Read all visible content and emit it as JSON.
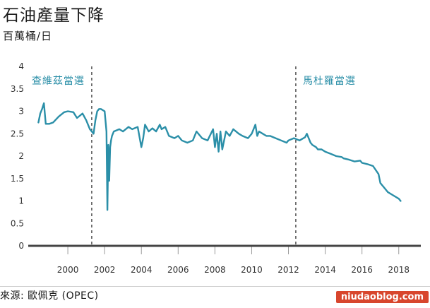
{
  "header": {
    "title": "石油產量下降",
    "subtitle": "百萬桶/日"
  },
  "footer": {
    "source": "來源: 歐佩克 (OPEC)",
    "watermark": "niudaoblog.com"
  },
  "colors": {
    "line": "#2b8fa8",
    "annotation": "#2b8fa8",
    "axis": "#444444",
    "dashed": "#333333"
  },
  "chart_data": {
    "type": "line",
    "title": "石油產量下降",
    "ylabel": "百萬桶/日",
    "xlabel": "",
    "xlim": [
      1998.0,
      2019.2
    ],
    "ylim": [
      0,
      4
    ],
    "yticks": [
      "0",
      "0.5",
      "1",
      "1.5",
      "2",
      "2.5",
      "3",
      "3.5",
      "4"
    ],
    "xticks": [
      "2000",
      "2002",
      "2004",
      "2006",
      "2008",
      "2010",
      "2012",
      "2014",
      "2016",
      "2018"
    ],
    "grid": false,
    "annotations": [
      {
        "label": "查維茲當選",
        "x": 2001.3
      },
      {
        "label": "馬杜羅當選",
        "x": 2012.4
      }
    ],
    "series": [
      {
        "x": [
          1998.4,
          1998.5,
          1998.6,
          1998.7,
          1998.8,
          1998.9,
          1999.0,
          1999.2,
          1999.5,
          1999.8,
          2000.0,
          2000.3,
          2000.5,
          2000.8,
          2001.0,
          2001.2,
          2001.4,
          2001.5,
          2001.6,
          2001.7,
          2001.8,
          2002.0,
          2002.1,
          2002.15,
          2002.2,
          2002.25,
          2002.3,
          2002.35,
          2002.4,
          2002.5,
          2002.8,
          2003.0,
          2003.3,
          2003.5,
          2003.8,
          2004.0,
          2004.1,
          2004.2,
          2004.4,
          2004.6,
          2004.8,
          2005.0,
          2005.1,
          2005.3,
          2005.5,
          2005.8,
          2006.0,
          2006.2,
          2006.5,
          2006.8,
          2007.0,
          2007.3,
          2007.6,
          2007.9,
          2008.0,
          2008.1,
          2008.2,
          2008.3,
          2008.4,
          2008.6,
          2008.8,
          2009.0,
          2009.3,
          2009.5,
          2009.8,
          2010.0,
          2010.2,
          2010.3,
          2010.4,
          2010.6,
          2010.8,
          2011.0,
          2011.3,
          2011.6,
          2011.9,
          2012.0,
          2012.3,
          2012.6,
          2012.9,
          2013.0,
          2013.2,
          2013.3,
          2013.5,
          2013.6,
          2013.8,
          2014.0,
          2014.3,
          2014.6,
          2014.9,
          2015.0,
          2015.3,
          2015.6,
          2015.9,
          2016.0,
          2016.3,
          2016.6,
          2016.9,
          2017.0,
          2017.2,
          2017.4,
          2017.6,
          2017.8,
          2018.0,
          2018.1
        ],
        "y": [
          2.75,
          2.95,
          3.05,
          3.18,
          2.72,
          2.72,
          2.72,
          2.75,
          2.88,
          2.98,
          3.0,
          2.98,
          2.85,
          2.95,
          2.8,
          2.6,
          2.5,
          2.8,
          3.0,
          3.05,
          3.05,
          3.0,
          2.55,
          0.8,
          2.25,
          1.45,
          2.2,
          2.35,
          2.45,
          2.55,
          2.6,
          2.55,
          2.65,
          2.6,
          2.65,
          2.2,
          2.4,
          2.7,
          2.55,
          2.62,
          2.55,
          2.7,
          2.6,
          2.65,
          2.45,
          2.4,
          2.45,
          2.35,
          2.3,
          2.35,
          2.55,
          2.4,
          2.35,
          2.6,
          2.2,
          2.5,
          2.1,
          2.55,
          2.15,
          2.55,
          2.45,
          2.6,
          2.5,
          2.45,
          2.4,
          2.5,
          2.7,
          2.45,
          2.55,
          2.5,
          2.45,
          2.45,
          2.4,
          2.35,
          2.3,
          2.35,
          2.4,
          2.35,
          2.42,
          2.5,
          2.3,
          2.25,
          2.2,
          2.15,
          2.15,
          2.1,
          2.05,
          2.0,
          1.98,
          1.95,
          1.92,
          1.88,
          1.9,
          1.85,
          1.82,
          1.78,
          1.6,
          1.4,
          1.3,
          1.2,
          1.15,
          1.1,
          1.05,
          1.0
        ]
      }
    ]
  }
}
